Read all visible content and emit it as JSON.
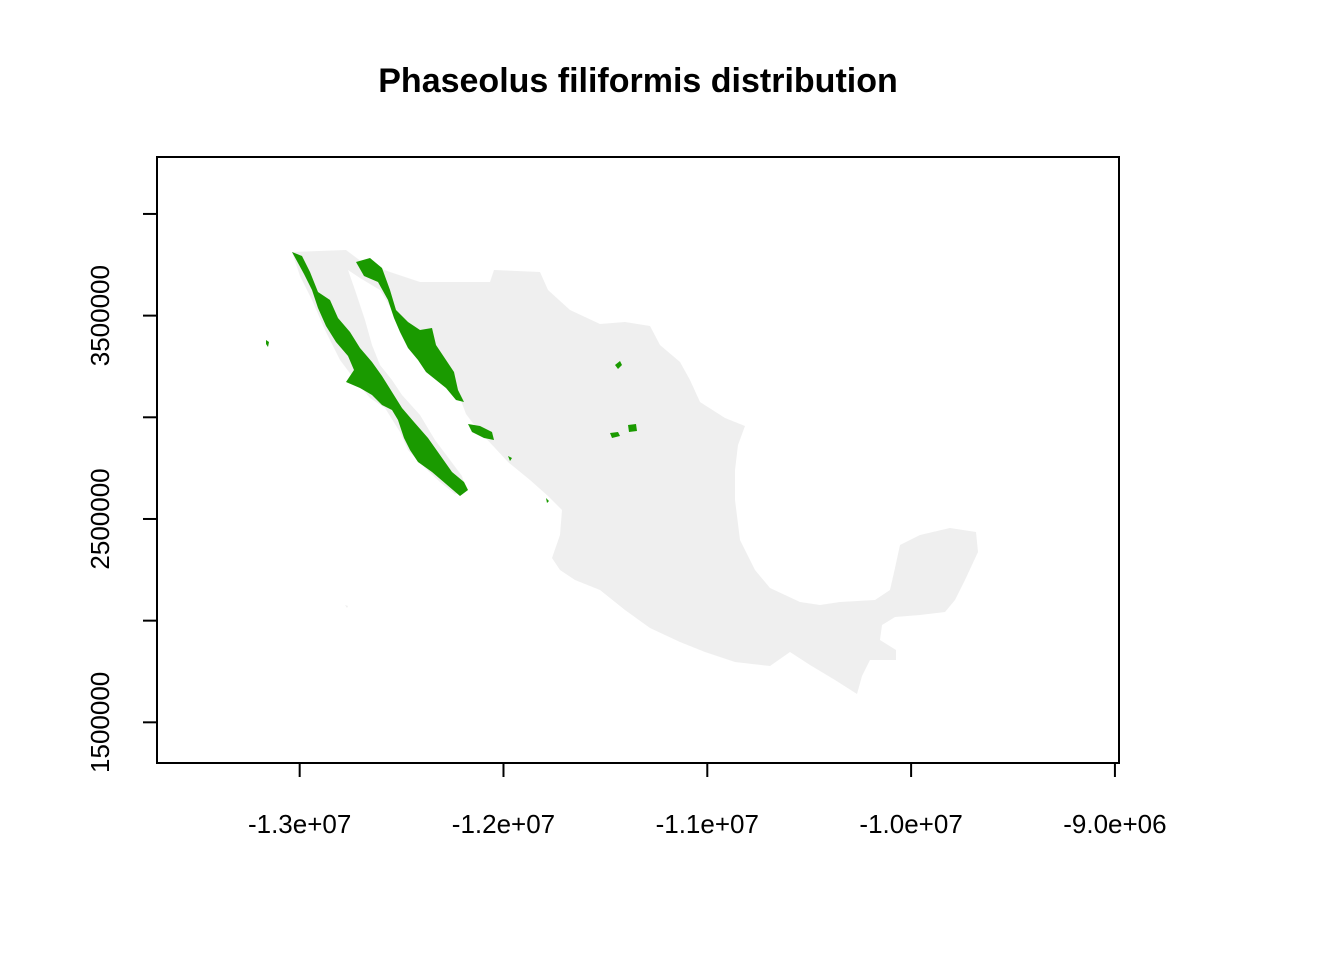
{
  "chart_data": {
    "type": "map",
    "title": "Phaseolus filiformis distribution",
    "xlabel": "",
    "ylabel": "",
    "x_ticks": [
      {
        "value": -13000000,
        "label": "-1.3e+07"
      },
      {
        "value": -12000000,
        "label": "-1.2e+07"
      },
      {
        "value": -11000000,
        "label": "-1.1e+07"
      },
      {
        "value": -10000000,
        "label": "-1.0e+07"
      },
      {
        "value": -9000000,
        "label": "-9.0e+06"
      }
    ],
    "y_ticks": [
      {
        "value": 1500000,
        "label": "1500000"
      },
      {
        "value": 2000000,
        "label": ""
      },
      {
        "value": 2500000,
        "label": "2500000"
      },
      {
        "value": 3000000,
        "label": ""
      },
      {
        "value": 3500000,
        "label": "3500000"
      },
      {
        "value": 4000000,
        "label": ""
      }
    ],
    "xlim": [
      -13700000,
      -8980000
    ],
    "ylim": [
      1300000,
      4280000
    ],
    "layers": [
      {
        "name": "Mexico",
        "color": "#efefef"
      },
      {
        "name": "Phaseolus filiformis range",
        "color": "#1a9a00"
      }
    ]
  }
}
